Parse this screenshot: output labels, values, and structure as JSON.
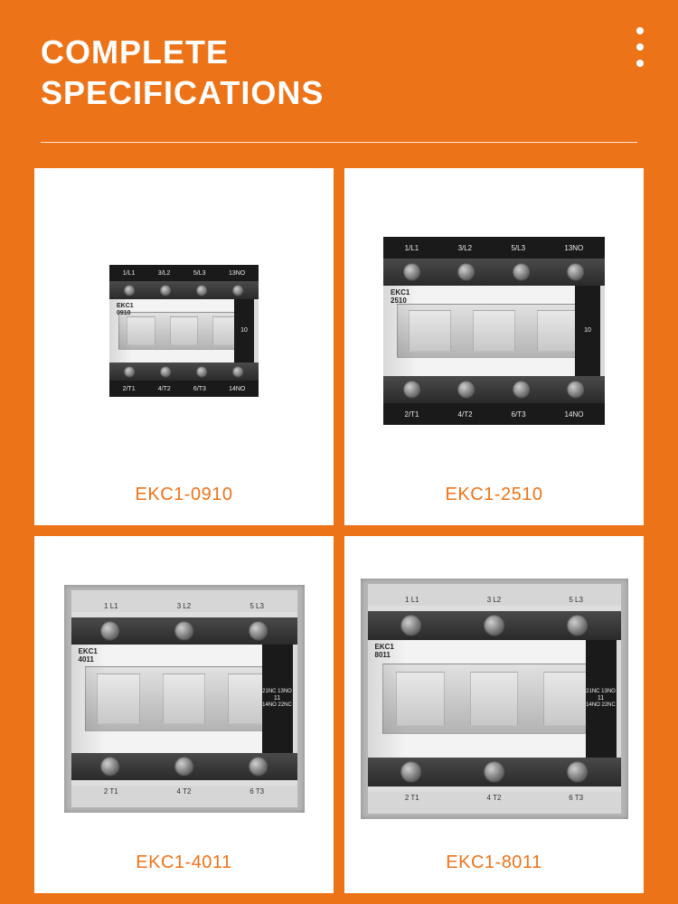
{
  "colors": {
    "background": "#ed7319",
    "card_bg": "#ffffff",
    "title": "#ffffff",
    "label": "#ed7319",
    "divider": "rgba(255,255,255,0.8)"
  },
  "title_line1": "COMPLETE",
  "title_line2": "SPECIFICATIONS",
  "products": [
    {
      "label": "EKC1-0910",
      "size": "c-sm",
      "top_terminals": [
        "1/L1",
        "3/L2",
        "5/L3",
        "13NO"
      ],
      "bot_terminals": [
        "2/T1",
        "4/T2",
        "6/T3",
        "14NO"
      ],
      "model_line1": "EKC1",
      "model_line2": "0910",
      "side_text_top": "",
      "side_text_bot": "10",
      "screws": 4,
      "has_plate": false
    },
    {
      "label": "EKC1-2510",
      "size": "c-md",
      "top_terminals": [
        "1/L1",
        "3/L2",
        "5/L3",
        "13NO"
      ],
      "bot_terminals": [
        "2/T1",
        "4/T2",
        "6/T3",
        "14NO"
      ],
      "model_line1": "EKC1",
      "model_line2": "2510",
      "side_text_top": "",
      "side_text_bot": "10",
      "screws": 4,
      "has_plate": false
    },
    {
      "label": "EKC1-4011",
      "size": "c-lg",
      "top_terminals": [
        "1 L1",
        "3 L2",
        "5 L3"
      ],
      "bot_terminals": [
        "2 T1",
        "4 T2",
        "6 T3"
      ],
      "model_line1": "EKC1",
      "model_line2": "4011",
      "side_text_top": "21NC 13NO",
      "side_text_bot": "14NO 22NC",
      "side_mid": "11",
      "screws": 3,
      "has_plate": true
    },
    {
      "label": "EKC1-8011",
      "size": "c-xl",
      "top_terminals": [
        "1 L1",
        "3 L2",
        "5 L3"
      ],
      "bot_terminals": [
        "2 T1",
        "4 T2",
        "6 T3"
      ],
      "model_line1": "EKC1",
      "model_line2": "8011",
      "side_text_top": "21NC 13NO",
      "side_text_bot": "14NO 22NC",
      "side_mid": "11",
      "screws": 3,
      "has_plate": true
    }
  ]
}
